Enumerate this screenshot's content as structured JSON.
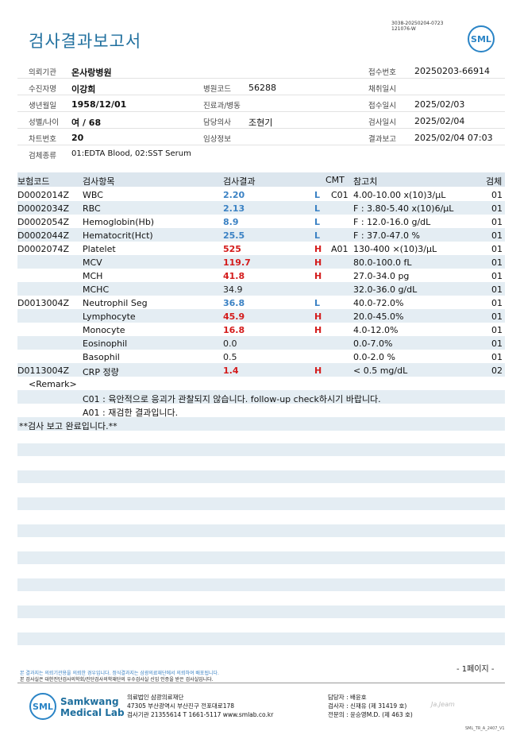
{
  "header": {
    "title": "검사결과보고서",
    "doc_id_line1": "3038-20250204-0723",
    "doc_id_line2": "121076-W",
    "logo_text": "SML"
  },
  "info": {
    "hospital_label": "의뢰기관",
    "hospital_value": "온사랑병원",
    "receipt_no_label": "접수번호",
    "receipt_no_value": "20250203-66914",
    "patient_label": "수진자명",
    "patient_value": "이강희",
    "hospital_code_label": "병원코드",
    "hospital_code_value": "56288",
    "collect_date_label": "채취일시",
    "collect_date_value": "",
    "birth_label": "생년월일",
    "birth_value": "1958/12/01",
    "dept_label": "진료과/병동",
    "dept_value": "",
    "receipt_date_label": "접수일시",
    "receipt_date_value": "2025/02/03",
    "sex_age_label": "성별/나이",
    "sex_age_value": "여 / 68",
    "doctor_label": "담당의사",
    "doctor_value": "조현기",
    "test_date_label": "검사일시",
    "test_date_value": "2025/02/04",
    "chart_no_label": "차트번호",
    "chart_no_value": "20",
    "clinical_label": "임상정보",
    "clinical_value": "",
    "report_label": "결과보고",
    "report_value": "2025/02/04 07:03",
    "specimen_label": "검체종류",
    "specimen_value": "01:EDTA Blood, 02:SST Serum"
  },
  "table": {
    "headers": {
      "code": "보험코드",
      "item": "검사항목",
      "result": "검사결과",
      "cmt": "CMT",
      "ref": "참고치",
      "spec": "검체"
    },
    "rows": [
      {
        "code": "D0002014Z",
        "item": "WBC",
        "result": "2.20",
        "flag": "L",
        "cmt": "C01",
        "ref": "4.00-10.00 x(10)3/μL",
        "spec": "01"
      },
      {
        "code": "D0002034Z",
        "item": "RBC",
        "result": "2.13",
        "flag": "L",
        "cmt": "",
        "ref": "F : 3.80-5.40 x(10)6/μL",
        "spec": "01"
      },
      {
        "code": "D0002054Z",
        "item": "Hemoglobin(Hb)",
        "result": "8.9",
        "flag": "L",
        "cmt": "",
        "ref": "F : 12.0-16.0 g/dL",
        "spec": "01"
      },
      {
        "code": "D0002044Z",
        "item": "Hematocrit(Hct)",
        "result": "25.5",
        "flag": "L",
        "cmt": "",
        "ref": "F : 37.0-47.0 %",
        "spec": "01"
      },
      {
        "code": "D0002074Z",
        "item": "Platelet",
        "result": "525",
        "flag": "H",
        "cmt": "A01",
        "ref": "130-400 ×(10)3/μL",
        "spec": "01"
      },
      {
        "code": "",
        "item": "MCV",
        "result": "119.7",
        "flag": "H",
        "cmt": "",
        "ref": "80.0-100.0 fL",
        "spec": "01"
      },
      {
        "code": "",
        "item": "MCH",
        "result": "41.8",
        "flag": "H",
        "cmt": "",
        "ref": "27.0-34.0 pg",
        "spec": "01"
      },
      {
        "code": "",
        "item": "MCHC",
        "result": "34.9",
        "flag": "",
        "cmt": "",
        "ref": "32.0-36.0 g/dL",
        "spec": "01"
      },
      {
        "code": "D0013004Z",
        "item": "Neutrophil Seg",
        "result": "36.8",
        "flag": "L",
        "cmt": "",
        "ref": "40.0-72.0%",
        "spec": "01"
      },
      {
        "code": "",
        "item": "Lymphocyte",
        "result": "45.9",
        "flag": "H",
        "cmt": "",
        "ref": "20.0-45.0%",
        "spec": "01"
      },
      {
        "code": "",
        "item": "Monocyte",
        "result": "16.8",
        "flag": "H",
        "cmt": "",
        "ref": "4.0-12.0%",
        "spec": "01"
      },
      {
        "code": "",
        "item": "Eosinophil",
        "result": "0.0",
        "flag": "",
        "cmt": "",
        "ref": "0.0-7.0%",
        "spec": "01"
      },
      {
        "code": "",
        "item": "Basophil",
        "result": "0.5",
        "flag": "",
        "cmt": "",
        "ref": "0.0-2.0 %",
        "spec": "01"
      },
      {
        "code": "D0113004Z",
        "item": "CRP 정량",
        "result": "1.4",
        "flag": "H",
        "cmt": "",
        "ref": "< 0.5 mg/dL",
        "spec": "02"
      }
    ]
  },
  "remarks": {
    "title": "<Remark>",
    "c01": "C01 : 육안적으로 응괴가 관찰되지 않습니다. follow-up check하시기 바랍니다.",
    "a01": "A01 : 재검한 결과입니다.",
    "done": "**검사 보고 완료입니다.**"
  },
  "footer": {
    "notice1": "본 결과지는 의뢰기관용을 의뢰한 경우입니다. 정식결과지는 삼광의료재단에서 의뢰하여 배포됩니다.",
    "notice2": "본 검사실은 대한진단검사의학회/진단검사의학재단의 우수검사실 신임 인증을 받은 검사실입니다.",
    "page": "- 1페이지 -",
    "logo_text": "SML",
    "brand_line1": "Samkwang",
    "brand_line2": "Medical Lab",
    "org_line1": "의료법인 삼광의료재단",
    "org_line2": "47305 부산광역시 부산진구 전포대로178",
    "org_line3": "검사기관 21355614 T 1661-5117 www.smlab.co.kr",
    "staff_line1": "담당자 : 배윤호",
    "staff_line2": "검사자 : 신재유 (제 31419 호)",
    "staff_line3": "전문의 : 윤승영M.D. (제 463 호)",
    "signature": "Ja.Jeam",
    "version": "SML_TR_A_2407_V1"
  }
}
